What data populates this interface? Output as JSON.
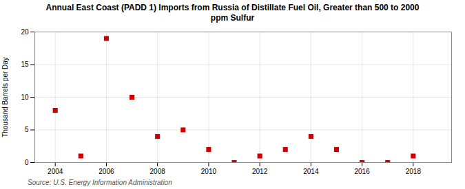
{
  "chart_data": {
    "type": "scatter",
    "title": "Annual East Coast (PADD 1) Imports from Russia of Distillate Fuel Oil, Greater than 500 to 2000\nppm Sulfur",
    "ylabel": "Thousand Barrels per Day",
    "annotations": [
      "Source: U.S. Energy Information Administration"
    ],
    "x": [
      2004,
      2005,
      2006,
      2007,
      2008,
      2009,
      2010,
      2011,
      2012,
      2013,
      2014,
      2015,
      2016,
      2017,
      2018
    ],
    "values": [
      8,
      1,
      19,
      10,
      4,
      5,
      2,
      0,
      1,
      2,
      4,
      2,
      0,
      0,
      1
    ],
    "color": "#cc0000",
    "marker": "square",
    "xlim": [
      2003.2,
      2019.5
    ],
    "xticks": [
      2004,
      2006,
      2008,
      2010,
      2012,
      2014,
      2016,
      2018
    ],
    "ylim": [
      0,
      20
    ],
    "yticks": [
      0,
      5,
      10,
      15,
      20
    ],
    "grid": true
  }
}
